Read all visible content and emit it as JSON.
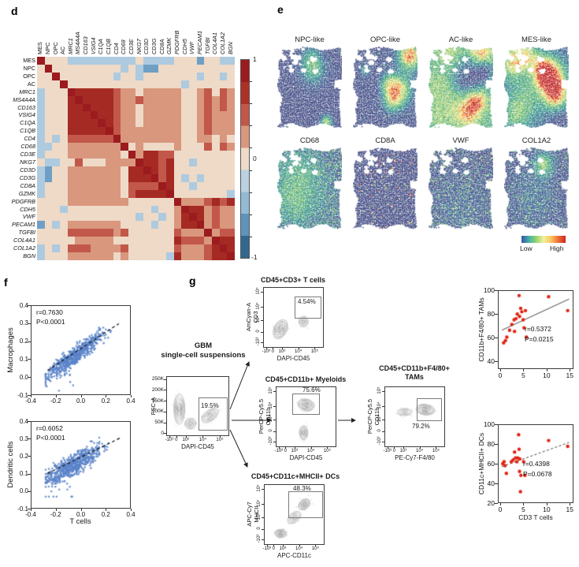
{
  "panel_labels": {
    "d": "d",
    "e": "e",
    "f": "f",
    "g": "g"
  },
  "heatmap": {
    "labels": [
      "MES",
      "NPC",
      "OPC",
      "AC",
      "MRC1",
      "MS4A4A",
      "CD163",
      "VSIG4",
      "C1QA",
      "C1QB",
      "CD4",
      "CD68",
      "CD3E",
      "NKG7",
      "CD3D",
      "CD3G",
      "CD8A",
      "GZMK",
      "PDGFRB",
      "CDH5",
      "VWF",
      "PECAM1",
      "TGFBI",
      "COL4A1",
      "COL1A2",
      "BGN"
    ],
    "italic_from": 4,
    "palette": {
      "D": "#9b1b1e",
      "R": "#a62a24",
      "r": "#c2584a",
      "p": "#d9977e",
      "c": "#eedac7",
      "b": "#aecadf",
      "B": "#6f9fc4",
      "N": "#31688f"
    },
    "colorbar_tick_labels": [
      "1",
      "0",
      "-1"
    ]
  },
  "spatial": {
    "titles": [
      "NPC-like",
      "OPC-like",
      "AC-like",
      "MES-like",
      "CD68",
      "CD8A",
      "VWF",
      "COL1A2"
    ],
    "legend_low": "Low",
    "legend_high": "High"
  },
  "ui": {
    "flow_x_ticks": [
      "-10³",
      "0",
      "10³",
      "10⁴",
      "10⁵"
    ],
    "flow_y_ticks": [
      "10⁵",
      "10⁴",
      "10³",
      "0",
      "-10³"
    ],
    "fsc_ticks": [
      "250K",
      "200K",
      "150K",
      "100K",
      "50K",
      "0"
    ],
    "f_x_ticks": [
      "-0.4",
      "-0.2",
      "0.0",
      "0.2",
      "0.4"
    ],
    "f_y_ticks": [
      "0.4",
      "0.3",
      "0.2",
      "0.1",
      "0.0",
      "-0.1"
    ],
    "g_x_ticks": [
      "0",
      "5",
      "10",
      "15"
    ],
    "g_y_ticks_top": [
      "100",
      "80",
      "60",
      "40"
    ],
    "g_y_ticks_bottom": [
      "100",
      "80",
      "60",
      "40",
      "20"
    ],
    "f_stats": [
      [
        "r=0.7630",
        "P<0.0001"
      ],
      [
        "r=0.6052",
        "P<0.0001"
      ]
    ],
    "g_stats": [
      [
        "r=0.5372",
        "P=0.0215"
      ],
      [
        "r=0.4398",
        "P=0.0678"
      ]
    ],
    "f_ylabels": [
      "Macrophages",
      "Dendritic cells"
    ],
    "f_xlabel": "T cells",
    "g_ylabels": [
      "CD11b+F4/80+ TAMs",
      "CD11c+MHCII+ DCs"
    ],
    "g_xlabel": "CD3 T cells"
  },
  "flow": {
    "source_line1": "GBM",
    "source_line2": "single-cell suspensions",
    "plots": {
      "root": {
        "gate": "19.5%",
        "xlabel": "DAPI-CD45",
        "ylabel": "FSC-A"
      },
      "tcells": {
        "title": "CD45+CD3+ T cells",
        "gate": "4.54%",
        "xlabel": "DAPI-CD45",
        "ylabel1": "AmCyan-A",
        "ylabel2": "CD3"
      },
      "myeloids": {
        "title": "CD45+CD11b+ Myeloids",
        "gate": "75.6%",
        "xlabel": "DAPI-CD45",
        "ylabel1": "PerCP-Cy5.5",
        "ylabel2": "CD11b"
      },
      "tams": {
        "title1": "CD45+CD11b+F4/80+",
        "title2": "TAMs",
        "gate": "79.2%",
        "xlabel": "PE-Cy7-F4/80",
        "ylabel1": "PerCP-Cy5.5",
        "ylabel2": "CD11b"
      },
      "dcs": {
        "title": "CD45+CD11c+MHCII+ DCs",
        "gate": "48.3%",
        "xlabel": "APC-CD11c",
        "ylabel1": "APC-Cy7",
        "ylabel2": "MHCII"
      }
    }
  },
  "chart_data": [
    {
      "id": "d_correlation_heatmap",
      "type": "heatmap",
      "labels": [
        "MES",
        "NPC",
        "OPC",
        "AC",
        "MRC1",
        "MS4A4A",
        "CD163",
        "VSIG4",
        "C1QA",
        "C1QB",
        "CD4",
        "CD68",
        "CD3E",
        "NKG7",
        "CD3D",
        "CD3G",
        "CD8A",
        "GZMK",
        "PDGFRB",
        "CDH5",
        "VWF",
        "PECAM1",
        "TGFBI",
        "COL4A1",
        "COL1A2",
        "BGN"
      ],
      "matrix_codes": [
        "DcccbbbbbbbbbcbbbbcccBccbb",
        "cDcccccccccbcbBBcccccccccc",
        "ccDcccccccbccbcccccccbccbc",
        "cccDcccccccccccccccbcccccc",
        "bcccDRRRRRrppcpppppccprcrp",
        "bcccRDRRRRrpprpppppccprprp",
        "bcccRRDRRRrppcpppppccprprp",
        "bcccRRRDRRrppcpppppccprppp",
        "bcccRRRRDRrppcpppppccprppp",
        "bcccRRRRRDrppppppppccprppp",
        "bcbcrrrrrrDppppppppccppcpc",
        "bbccpppppppDcpccccpcccrcrp",
        "bcccpppppppcDpRRrrcccccccc",
        "cbbccrcccppppDRRrRccbccccc",
        "bBccpppppppcRRDRrRcccccccc",
        "bBccpppppppcRRRDrRcbcbcccc",
        "bcccpppppppcrrrrDRccbccccc",
        "bcccpppppppcrRRRRDcccccccb",
        "ccccppppppppccccccDppprRrR",
        "cccbcccccccccccbccpDRRprpp",
        "cccccccccccccbccbcpRDRprpp",
        "BcbcpppppppccccbccpRRDprpp",
        "ccccrrrrrrprccccccrpppDprr",
        "cccccpppppccccccccRrrrpDRR",
        "bcbcrrrpppprccccccrppprRDR",
        "bcccppppppcpcccccbRppprRRD"
      ],
      "code_values": {
        "D": 1.0,
        "R": 0.85,
        "r": 0.55,
        "p": 0.3,
        "c": 0.05,
        "b": -0.25,
        "B": -0.5,
        "N": -0.75
      },
      "scale": [
        -1,
        1
      ],
      "colorbar_ticks": [
        1,
        0,
        -1
      ]
    },
    {
      "id": "e_spatial_maps",
      "type": "heatmap",
      "subtype": "spatial_feature_maps",
      "markers": [
        "NPC-like",
        "OPC-like",
        "AC-like",
        "MES-like",
        "CD68",
        "CD8A",
        "VWF",
        "COL1A2"
      ],
      "scale_labels": [
        "Low",
        "High"
      ]
    },
    {
      "id": "f_scatter_macrophages",
      "type": "scatter",
      "xlabel": "T cells",
      "ylabel": "Macrophages",
      "xlim": [
        -0.4,
        0.4
      ],
      "ylim": [
        -0.1,
        0.4
      ],
      "x_ticks": [
        -0.4,
        -0.2,
        0.0,
        0.2,
        0.4
      ],
      "y_ticks": [
        -0.1,
        0.0,
        0.1,
        0.2,
        0.3,
        0.4
      ],
      "annotation": {
        "r": 0.763,
        "p": "P<0.0001"
      },
      "trend_line": {
        "style": "dashed",
        "from": [
          -0.27,
          0.035
        ],
        "to": [
          0.31,
          0.3
        ]
      },
      "point_cloud_note": "dense cloud of ~600 spots, positive correlation"
    },
    {
      "id": "f_scatter_dendritic",
      "type": "scatter",
      "xlabel": "T cells",
      "ylabel": "Dendritic cells",
      "xlim": [
        -0.4,
        0.4
      ],
      "ylim": [
        -0.1,
        0.4
      ],
      "x_ticks": [
        -0.4,
        -0.2,
        0.0,
        0.2,
        0.4
      ],
      "y_ticks": [
        -0.1,
        0.0,
        0.1,
        0.2,
        0.3,
        0.4
      ],
      "annotation": {
        "r": 0.6052,
        "p": "P<0.0001"
      },
      "trend_line": {
        "style": "dashed",
        "from": [
          -0.27,
          0.1
        ],
        "to": [
          0.33,
          0.31
        ]
      },
      "point_cloud_note": "dense cloud of ~600 spots, positive correlation"
    },
    {
      "id": "g_flow_gating",
      "type": "flow_cytometry",
      "source": "GBM single-cell suspensions",
      "gates": [
        {
          "plot": "FSC-A vs DAPI-CD45",
          "population": "CD45+",
          "pct": 19.5
        },
        {
          "plot": "AmCyan-A CD3 vs DAPI-CD45",
          "population": "CD45+CD3+ T cells",
          "pct": 4.54
        },
        {
          "plot": "PerCP-Cy5.5 CD11b vs DAPI-CD45",
          "population": "CD45+CD11b+ Myeloids",
          "pct": 75.6
        },
        {
          "plot": "PerCP-Cy5.5 CD11b vs PE-Cy7-F4/80",
          "population": "CD45+CD11b+F4/80+ TAMs",
          "pct": 79.2
        },
        {
          "plot": "APC-Cy7 MHCII vs APC-CD11c",
          "population": "CD45+CD11c+MHCII+ DCs",
          "pct": 48.3
        }
      ]
    },
    {
      "id": "g_scatter_tams",
      "type": "scatter",
      "xlabel": "CD3 T cells",
      "ylabel": "CD11b+F4/80+ TAMs",
      "xlim": [
        0,
        15
      ],
      "ylim": [
        33,
        100
      ],
      "x_ticks": [
        0,
        5,
        10,
        15
      ],
      "y_ticks": [
        40,
        60,
        80,
        100
      ],
      "annotation": {
        "r": 0.5372,
        "p": "P=0.0215"
      },
      "trend_line": {
        "style": "solid",
        "from": [
          0.2,
          66
        ],
        "to": [
          15,
          93
        ]
      },
      "points": [
        [
          0.6,
          55
        ],
        [
          1.0,
          57
        ],
        [
          1.3,
          60
        ],
        [
          1.9,
          66
        ],
        [
          2.4,
          71
        ],
        [
          2.9,
          75
        ],
        [
          3.0,
          65
        ],
        [
          3.3,
          76
        ],
        [
          3.6,
          80
        ],
        [
          4.0,
          96
        ],
        [
          4.1,
          78
        ],
        [
          4.35,
          85
        ],
        [
          4.6,
          82
        ],
        [
          4.9,
          75
        ],
        [
          5.1,
          68
        ],
        [
          5.4,
          83
        ],
        [
          5.6,
          60
        ],
        [
          10.5,
          95
        ],
        [
          14.7,
          83
        ]
      ]
    },
    {
      "id": "g_scatter_dcs",
      "type": "scatter",
      "xlabel": "CD3 T cells",
      "ylabel": "CD11c+MHCII+ DCs",
      "xlim": [
        0,
        15
      ],
      "ylim": [
        20,
        100
      ],
      "x_ticks": [
        0,
        5,
        10,
        15
      ],
      "y_ticks": [
        20,
        40,
        60,
        80,
        100
      ],
      "annotation": {
        "r": 0.4398,
        "p": "P=0.0678"
      },
      "trend_line": {
        "style": "dashed",
        "from": [
          0.2,
          57
        ],
        "to": [
          15,
          82
        ]
      },
      "points": [
        [
          0.4,
          60
        ],
        [
          0.7,
          62
        ],
        [
          0.9,
          58
        ],
        [
          1.2,
          50
        ],
        [
          2.3,
          62
        ],
        [
          2.7,
          64
        ],
        [
          3.0,
          72
        ],
        [
          3.2,
          66
        ],
        [
          3.5,
          62
        ],
        [
          3.7,
          66
        ],
        [
          3.9,
          90
        ],
        [
          4.0,
          75
        ],
        [
          4.15,
          65
        ],
        [
          4.1,
          52
        ],
        [
          4.4,
          48
        ],
        [
          4.3,
          31
        ],
        [
          5.0,
          62
        ],
        [
          5.3,
          48
        ],
        [
          10.5,
          84
        ],
        [
          14.7,
          78
        ]
      ]
    }
  ]
}
